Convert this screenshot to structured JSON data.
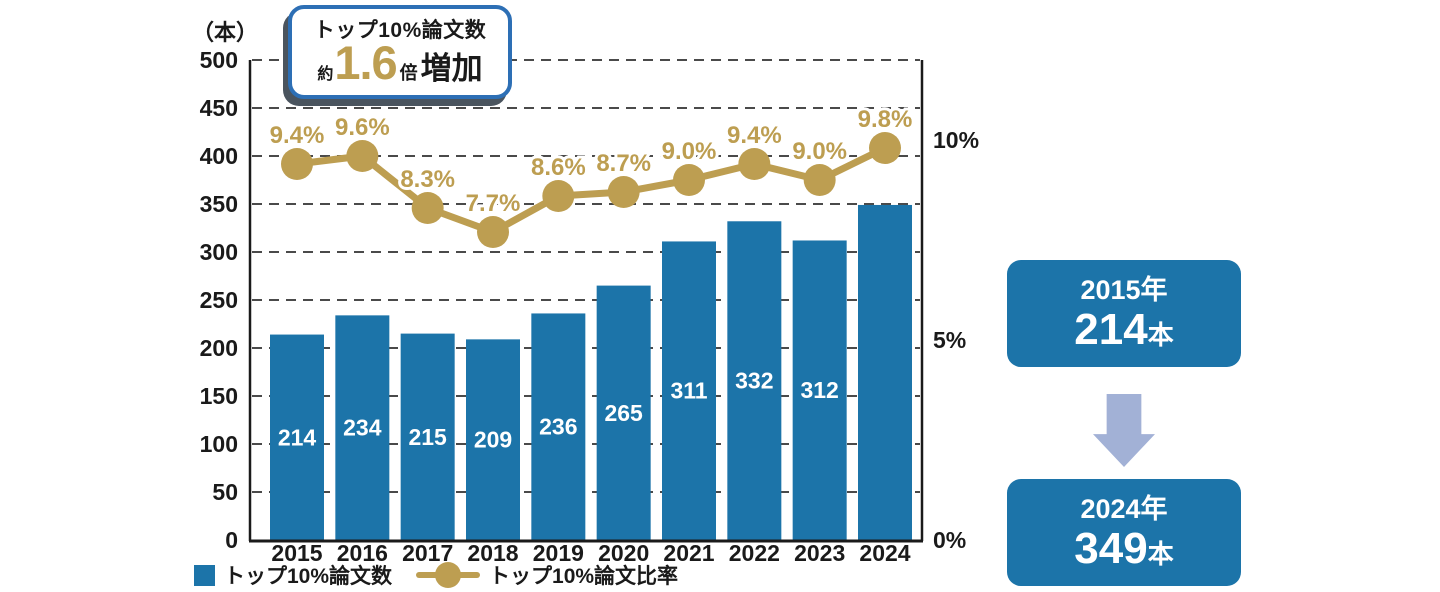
{
  "title_badge": {
    "line1": "トップ10%論文数",
    "prefix": "約",
    "multiplier": "1.6",
    "unit": "倍",
    "suffix": "増加"
  },
  "chart_data": {
    "type": "combo",
    "categories": [
      "2015",
      "2016",
      "2017",
      "2018",
      "2019",
      "2020",
      "2021",
      "2022",
      "2023",
      "2024"
    ],
    "series": [
      {
        "name": "トップ10%論文数",
        "type": "bar",
        "axis": "left",
        "values": [
          214,
          234,
          215,
          209,
          236,
          265,
          311,
          332,
          312,
          349
        ],
        "value_labels": [
          "214",
          "234",
          "215",
          "209",
          "236",
          "265",
          "311",
          "332",
          "312",
          ""
        ],
        "color": "#1C74A9"
      },
      {
        "name": "トップ10%論文比率",
        "type": "line",
        "axis": "right",
        "values": [
          9.4,
          9.6,
          8.3,
          7.7,
          8.6,
          8.7,
          9.0,
          9.4,
          9.0,
          9.8
        ],
        "point_labels": [
          "9.4%",
          "9.6%",
          "8.3%",
          "7.7%",
          "8.6%",
          "8.7%",
          "9.0%",
          "9.4%",
          "9.0%",
          "9.8%"
        ],
        "color": "#BD9E51"
      }
    ],
    "left_axis": {
      "title": "（本）",
      "min": 0,
      "max": 500,
      "step": 50
    },
    "right_axis": {
      "min": 0,
      "max": 12,
      "ticks": [
        {
          "label": "0%",
          "value": 0
        },
        {
          "label": "5%",
          "value": 5
        },
        {
          "label": "10%",
          "value": 10
        }
      ]
    },
    "grid": "dashed horizontal",
    "legend_position": "bottom-left"
  },
  "legend": {
    "items": [
      {
        "label": "トップ10%論文数",
        "marker": "bar-square"
      },
      {
        "label": "トップ10%論文比率",
        "marker": "line-dot"
      }
    ]
  },
  "summary": {
    "from": {
      "year": "2015年",
      "count": "214",
      "unit": "本"
    },
    "to": {
      "year": "2024年",
      "count": "349",
      "unit": "本"
    },
    "arrow": "down"
  },
  "colors": {
    "bar": "#1C74A9",
    "gold": "#BD9E51",
    "arrow": "#A2B1D6",
    "badge_border": "#2D6FB5",
    "badge_shadow": "#4A545E",
    "grid": "#4A4A4A",
    "axis": "#1A1A1A",
    "text": "#1A1A1A",
    "bar_label": "#FFFFFF"
  }
}
